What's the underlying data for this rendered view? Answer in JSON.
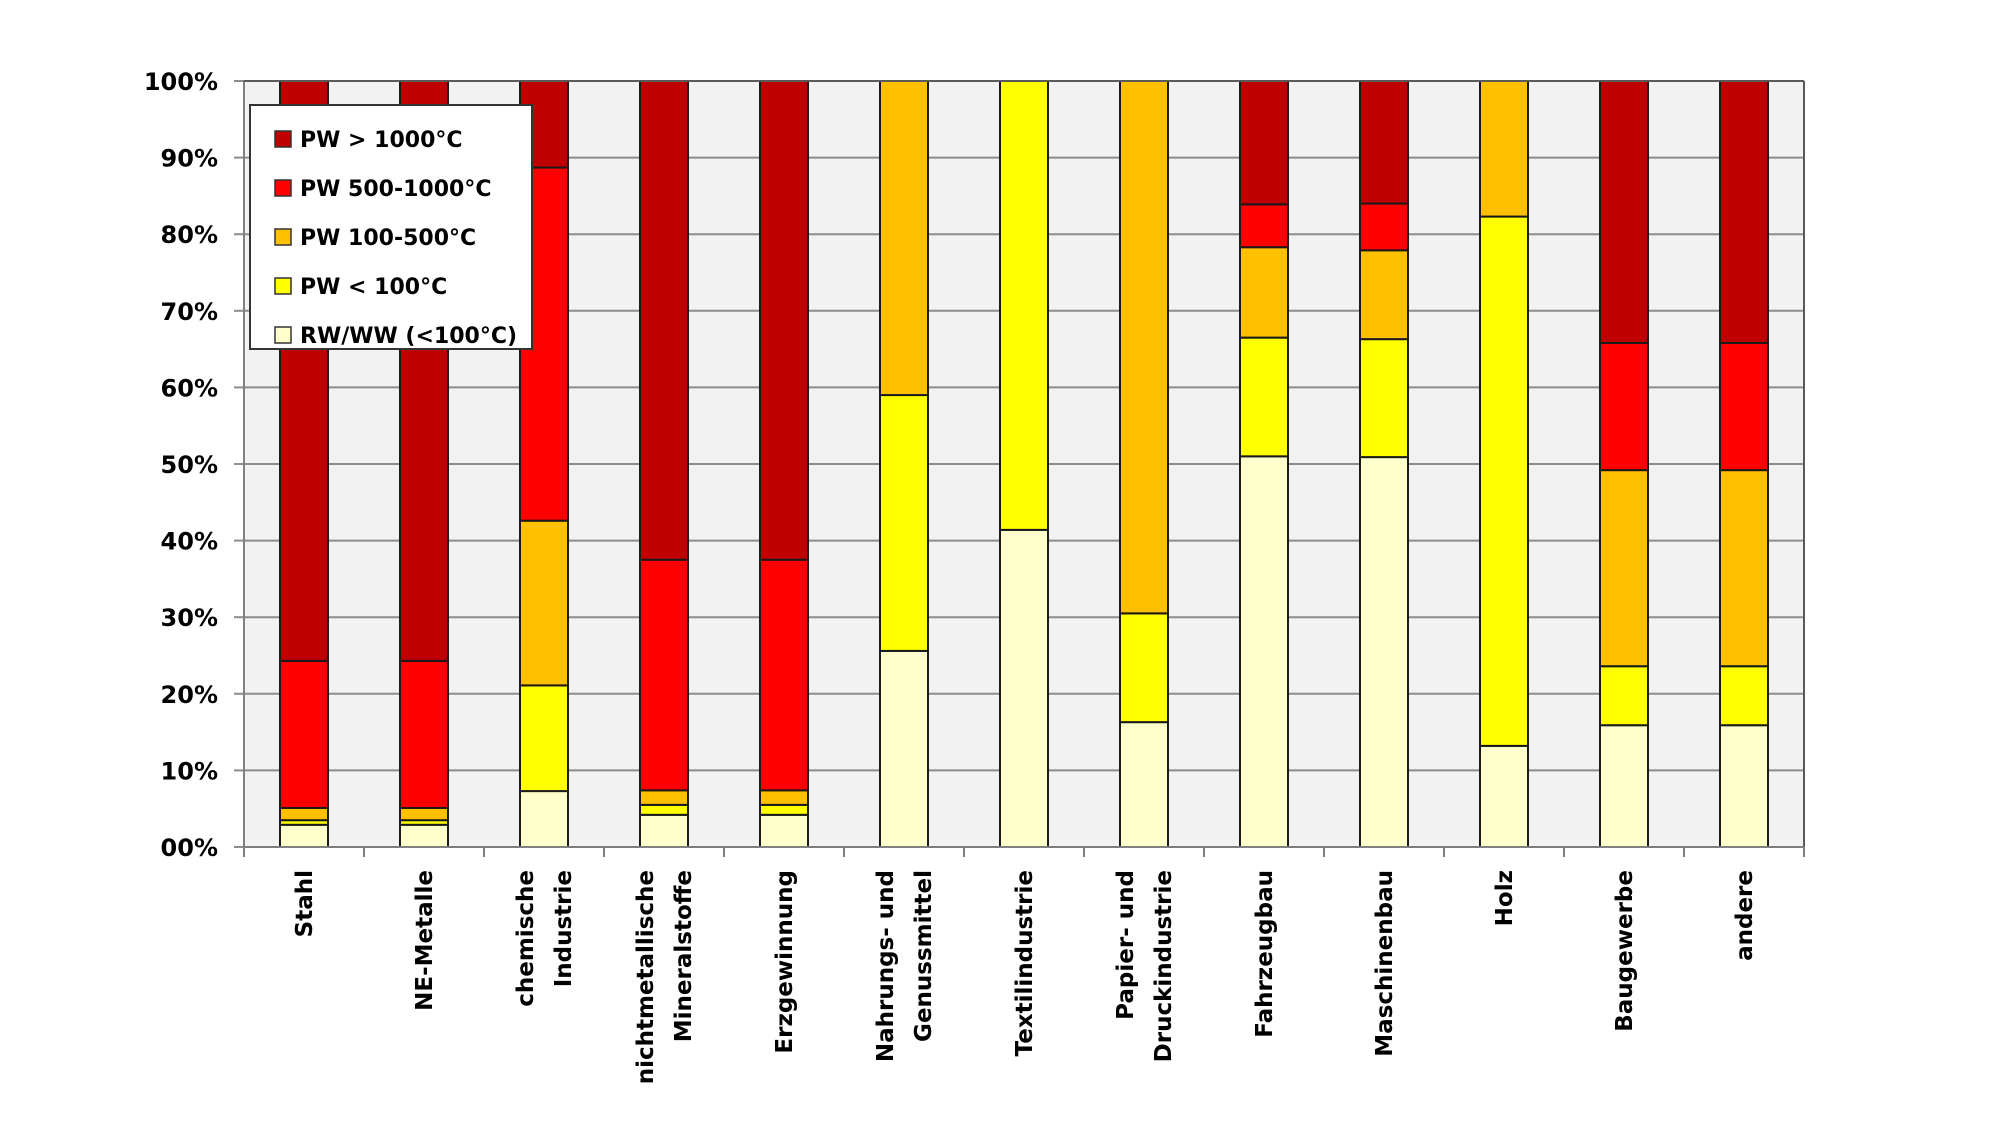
{
  "chart_data": {
    "type": "bar",
    "stacked": "percent",
    "title": "",
    "xlabel": "",
    "ylabel": "",
    "ylim": [
      0,
      100
    ],
    "y_ticks": [
      "00%",
      "10%",
      "20%",
      "30%",
      "40%",
      "50%",
      "60%",
      "70%",
      "80%",
      "90%",
      "100%"
    ],
    "grid": true,
    "legend_position": "top-left",
    "categories": [
      [
        "Stahl"
      ],
      [
        "NE-Metalle"
      ],
      [
        "chemische",
        "Industrie"
      ],
      [
        "nichtmetallische",
        "Mineralstoffe"
      ],
      [
        "Erzgewinnung"
      ],
      [
        "Nahrungs- und",
        "Genussmittel"
      ],
      [
        "Textilindustrie"
      ],
      [
        "Papier- und",
        "Druckindustrie"
      ],
      [
        "Fahrzeugbau"
      ],
      [
        "Maschinenbau"
      ],
      [
        "Holz"
      ],
      [
        "Baugewerbe"
      ],
      [
        "andere"
      ]
    ],
    "series": [
      {
        "name": "RW/WW (<100°C)",
        "color": "#FFFFCC",
        "values": [
          2.9,
          2.9,
          7.3,
          4.2,
          4.2,
          25.6,
          41.4,
          16.3,
          51.0,
          50.9,
          13.2,
          15.9,
          15.9
        ]
      },
      {
        "name": "PW < 100°C",
        "color": "#FFFF00",
        "values": [
          0.6,
          0.6,
          13.8,
          1.3,
          1.3,
          33.4,
          58.6,
          14.2,
          15.5,
          15.4,
          69.1,
          7.7,
          7.7
        ]
      },
      {
        "name": "PW 100-500°C",
        "color": "#FFC000",
        "values": [
          1.6,
          1.6,
          21.5,
          1.9,
          1.9,
          41.0,
          0.0,
          69.5,
          11.8,
          11.6,
          17.7,
          25.6,
          25.6
        ]
      },
      {
        "name": "PW 500-1000°C",
        "color": "#FF0000",
        "values": [
          19.2,
          19.2,
          46.1,
          30.1,
          30.1,
          0.0,
          0.0,
          0.0,
          5.6,
          6.1,
          0.0,
          16.6,
          16.6
        ]
      },
      {
        "name": "PW > 1000°C",
        "color": "#C00000",
        "values": [
          75.7,
          75.7,
          11.3,
          62.5,
          62.5,
          0.0,
          0.0,
          0.0,
          16.1,
          16.0,
          0.0,
          34.2,
          34.2
        ]
      }
    ],
    "legend_order": [
      "PW > 1000°C",
      "PW 500-1000°C",
      "PW 100-500°C",
      "PW < 100°C",
      "RW/WW (<100°C)"
    ]
  },
  "colors": {
    "plot_background": "#F2F2F2",
    "gridline": "#8C8C8C",
    "bar_outline": "#1a1a1a"
  }
}
